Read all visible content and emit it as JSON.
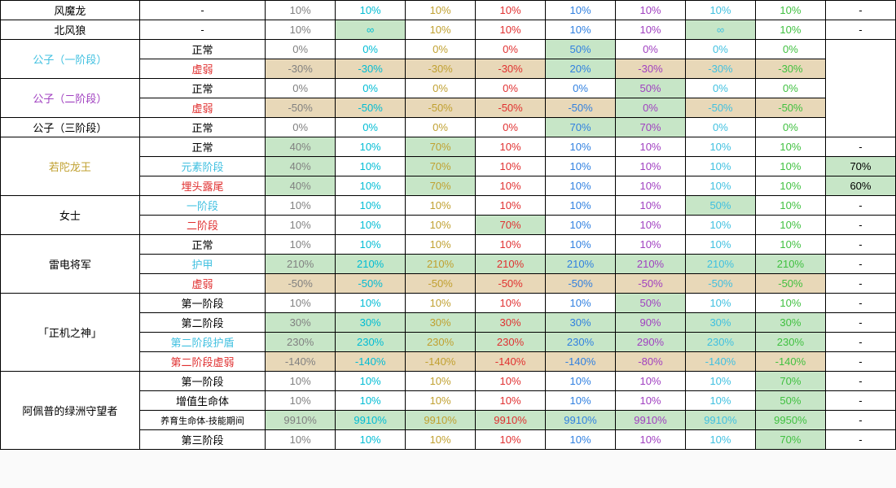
{
  "colors": {
    "text_default": "#000000",
    "text_gray": "#808080",
    "text_cyan": "#00bcd4",
    "text_olive": "#c0a030",
    "text_red": "#e03030",
    "text_blue": "#3080e0",
    "text_purple": "#a040c0",
    "text_lightblue": "#40c0e0",
    "text_green": "#40c040",
    "hl_green": "#c7e6c7",
    "hl_tan": "#e8d8b8"
  },
  "valueColColors": [
    "#808080",
    "#00bcd4",
    "#c0a030",
    "#e03030",
    "#3080e0",
    "#a040c0",
    "#40c0e0",
    "#40c040"
  ],
  "rows": [
    {
      "name": "风魔龙",
      "nameColor": "#000000",
      "nameRowspan": 1,
      "state": "-",
      "stateColor": "#000000",
      "vals": [
        "10%",
        "10%",
        "10%",
        "10%",
        "10%",
        "10%",
        "10%",
        "10%"
      ],
      "hl": [
        false,
        false,
        false,
        false,
        false,
        false,
        false,
        false
      ],
      "hlType": [
        "",
        "",
        "",
        "",
        "",
        "",
        "",
        ""
      ],
      "last": "-",
      "lastHl": false,
      "lastRowspan": 1
    },
    {
      "name": "北风狼",
      "nameColor": "#000000",
      "nameRowspan": 1,
      "state": "-",
      "stateColor": "#000000",
      "vals": [
        "10%",
        "∞",
        "10%",
        "10%",
        "10%",
        "10%",
        "∞",
        "10%"
      ],
      "hl": [
        false,
        true,
        false,
        false,
        false,
        false,
        true,
        false
      ],
      "hlType": [
        "",
        "g",
        "",
        "",
        "",
        "",
        "g",
        ""
      ],
      "last": "-",
      "lastHl": false,
      "lastRowspan": 1
    },
    {
      "name": "公子（一阶段）",
      "nameColor": "#40c0e0",
      "nameRowspan": 2,
      "state": "正常",
      "stateColor": "#000000",
      "vals": [
        "0%",
        "0%",
        "0%",
        "0%",
        "50%",
        "0%",
        "0%",
        "0%"
      ],
      "hl": [
        false,
        false,
        false,
        false,
        true,
        false,
        false,
        false
      ],
      "hlType": [
        "",
        "",
        "",
        "",
        "g",
        "",
        "",
        ""
      ],
      "last": "",
      "lastHl": false,
      "lastRowspan": 5
    },
    {
      "state": "虚弱",
      "stateColor": "#e03030",
      "vals": [
        "-30%",
        "-30%",
        "-30%",
        "-30%",
        "20%",
        "-30%",
        "-30%",
        "-30%"
      ],
      "hl": [
        true,
        true,
        true,
        true,
        true,
        true,
        true,
        true
      ],
      "hlType": [
        "t",
        "t",
        "t",
        "t",
        "g",
        "t",
        "t",
        "t"
      ]
    },
    {
      "name": "公子（二阶段）",
      "nameColor": "#a040c0",
      "nameRowspan": 2,
      "state": "正常",
      "stateColor": "#000000",
      "vals": [
        "0%",
        "0%",
        "0%",
        "0%",
        "0%",
        "50%",
        "0%",
        "0%"
      ],
      "hl": [
        false,
        false,
        false,
        false,
        false,
        true,
        false,
        false
      ],
      "hlType": [
        "",
        "",
        "",
        "",
        "",
        "g",
        "",
        ""
      ],
      "last": "-"
    },
    {
      "state": "虚弱",
      "stateColor": "#e03030",
      "vals": [
        "-50%",
        "-50%",
        "-50%",
        "-50%",
        "-50%",
        "0%",
        "-50%",
        "-50%"
      ],
      "hl": [
        true,
        true,
        true,
        true,
        true,
        true,
        true,
        true
      ],
      "hlType": [
        "t",
        "t",
        "t",
        "t",
        "t",
        "g",
        "t",
        "t"
      ]
    },
    {
      "name": "公子（三阶段）",
      "nameColor": "#000000",
      "nameRowspan": 1,
      "state": "正常",
      "stateColor": "#000000",
      "vals": [
        "0%",
        "0%",
        "0%",
        "0%",
        "70%",
        "70%",
        "0%",
        "0%"
      ],
      "hl": [
        false,
        false,
        false,
        false,
        true,
        true,
        false,
        false
      ],
      "hlType": [
        "",
        "",
        "",
        "",
        "g",
        "g",
        "",
        ""
      ]
    },
    {
      "name": "若陀龙王",
      "nameColor": "#c0a030",
      "nameRowspan": 3,
      "state": "正常",
      "stateColor": "#000000",
      "vals": [
        "40%",
        "10%",
        "70%",
        "10%",
        "10%",
        "10%",
        "10%",
        "10%"
      ],
      "hl": [
        true,
        false,
        true,
        false,
        false,
        false,
        false,
        false
      ],
      "hlType": [
        "g",
        "",
        "g",
        "",
        "",
        "",
        "",
        ""
      ],
      "last": "-",
      "lastHl": false,
      "lastRowspan": 1
    },
    {
      "state": "元素阶段",
      "stateColor": "#40c0e0",
      "vals": [
        "40%",
        "10%",
        "70%",
        "10%",
        "10%",
        "10%",
        "10%",
        "10%"
      ],
      "hl": [
        true,
        false,
        true,
        false,
        false,
        false,
        false,
        false
      ],
      "hlType": [
        "g",
        "",
        "g",
        "",
        "",
        "",
        "",
        ""
      ],
      "last": "70%",
      "lastHl": true,
      "lastHlType": "g",
      "lastRowspan": 1
    },
    {
      "state": "埋头露尾",
      "stateColor": "#e03030",
      "vals": [
        "40%",
        "10%",
        "70%",
        "10%",
        "10%",
        "10%",
        "10%",
        "10%"
      ],
      "hl": [
        true,
        false,
        true,
        false,
        false,
        false,
        false,
        false
      ],
      "hlType": [
        "g",
        "",
        "g",
        "",
        "",
        "",
        "",
        ""
      ],
      "last": "60%",
      "lastHl": true,
      "lastHlType": "g",
      "lastRowspan": 1
    },
    {
      "name": "女士",
      "nameColor": "#000000",
      "nameRowspan": 2,
      "state": "一阶段",
      "stateColor": "#40c0e0",
      "vals": [
        "10%",
        "10%",
        "10%",
        "10%",
        "10%",
        "10%",
        "50%",
        "10%"
      ],
      "hl": [
        false,
        false,
        false,
        false,
        false,
        false,
        true,
        false
      ],
      "hlType": [
        "",
        "",
        "",
        "",
        "",
        "",
        "g",
        ""
      ],
      "last": "-",
      "lastHl": false,
      "lastRowspan": 1
    },
    {
      "state": "二阶段",
      "stateColor": "#e03030",
      "vals": [
        "10%",
        "10%",
        "10%",
        "70%",
        "10%",
        "10%",
        "10%",
        "10%"
      ],
      "hl": [
        false,
        false,
        false,
        true,
        false,
        false,
        false,
        false
      ],
      "hlType": [
        "",
        "",
        "",
        "g",
        "",
        "",
        "",
        ""
      ],
      "last": "-",
      "lastHl": false,
      "lastRowspan": 1
    },
    {
      "name": "雷电将军",
      "nameColor": "#000000",
      "nameRowspan": 3,
      "state": "正常",
      "stateColor": "#000000",
      "vals": [
        "10%",
        "10%",
        "10%",
        "10%",
        "10%",
        "10%",
        "10%",
        "10%"
      ],
      "hl": [
        false,
        false,
        false,
        false,
        false,
        false,
        false,
        false
      ],
      "hlType": [
        "",
        "",
        "",
        "",
        "",
        "",
        "",
        ""
      ],
      "last": "-",
      "lastHl": false,
      "lastRowspan": 1
    },
    {
      "state": "护甲",
      "stateColor": "#40c0e0",
      "vals": [
        "210%",
        "210%",
        "210%",
        "210%",
        "210%",
        "210%",
        "210%",
        "210%"
      ],
      "hl": [
        true,
        true,
        true,
        true,
        true,
        true,
        true,
        true
      ],
      "hlType": [
        "g",
        "g",
        "g",
        "g",
        "g",
        "g",
        "g",
        "g"
      ],
      "last": "-",
      "lastHl": false,
      "lastRowspan": 1
    },
    {
      "state": "虚弱",
      "stateColor": "#e03030",
      "vals": [
        "-50%",
        "-50%",
        "-50%",
        "-50%",
        "-50%",
        "-50%",
        "-50%",
        "-50%"
      ],
      "hl": [
        true,
        true,
        true,
        true,
        true,
        true,
        true,
        true
      ],
      "hlType": [
        "t",
        "t",
        "t",
        "t",
        "t",
        "t",
        "t",
        "t"
      ],
      "last": "-",
      "lastHl": false,
      "lastRowspan": 1
    },
    {
      "name": "「正机之神」",
      "nameColor": "#000000",
      "nameRowspan": 4,
      "state": "第一阶段",
      "stateColor": "#000000",
      "vals": [
        "10%",
        "10%",
        "10%",
        "10%",
        "10%",
        "50%",
        "10%",
        "10%"
      ],
      "hl": [
        false,
        false,
        false,
        false,
        false,
        true,
        false,
        false
      ],
      "hlType": [
        "",
        "",
        "",
        "",
        "",
        "g",
        "",
        ""
      ],
      "last": "-",
      "lastHl": false,
      "lastRowspan": 1
    },
    {
      "state": "第二阶段",
      "stateColor": "#000000",
      "vals": [
        "30%",
        "30%",
        "30%",
        "30%",
        "30%",
        "90%",
        "30%",
        "30%"
      ],
      "hl": [
        true,
        true,
        true,
        true,
        true,
        true,
        true,
        true
      ],
      "hlType": [
        "g",
        "g",
        "g",
        "g",
        "g",
        "g",
        "g",
        "g"
      ],
      "last": "-",
      "lastHl": false,
      "lastRowspan": 1
    },
    {
      "state": "第二阶段护盾",
      "stateColor": "#40c0e0",
      "vals": [
        "230%",
        "230%",
        "230%",
        "230%",
        "230%",
        "290%",
        "230%",
        "230%"
      ],
      "hl": [
        true,
        true,
        true,
        true,
        true,
        true,
        true,
        true
      ],
      "hlType": [
        "g",
        "g",
        "g",
        "g",
        "g",
        "g",
        "g",
        "g"
      ],
      "last": "-",
      "lastHl": false,
      "lastRowspan": 1
    },
    {
      "state": "第二阶段虚弱",
      "stateColor": "#e03030",
      "vals": [
        "-140%",
        "-140%",
        "-140%",
        "-140%",
        "-140%",
        "-80%",
        "-140%",
        "-140%"
      ],
      "hl": [
        true,
        true,
        true,
        true,
        true,
        true,
        true,
        true
      ],
      "hlType": [
        "t",
        "t",
        "t",
        "t",
        "t",
        "t",
        "t",
        "t"
      ],
      "last": "-",
      "lastHl": false,
      "lastRowspan": 1
    },
    {
      "name": "阿佩普的绿洲守望者",
      "nameColor": "#000000",
      "nameRowspan": 4,
      "state": "第一阶段",
      "stateColor": "#000000",
      "vals": [
        "10%",
        "10%",
        "10%",
        "10%",
        "10%",
        "10%",
        "10%",
        "70%"
      ],
      "hl": [
        false,
        false,
        false,
        false,
        false,
        false,
        false,
        true
      ],
      "hlType": [
        "",
        "",
        "",
        "",
        "",
        "",
        "",
        "g"
      ],
      "last": "-",
      "lastHl": false,
      "lastRowspan": 1
    },
    {
      "state": "增值生命体",
      "stateColor": "#000000",
      "vals": [
        "10%",
        "10%",
        "10%",
        "10%",
        "10%",
        "10%",
        "10%",
        "50%"
      ],
      "hl": [
        false,
        false,
        false,
        false,
        false,
        false,
        false,
        true
      ],
      "hlType": [
        "",
        "",
        "",
        "",
        "",
        "",
        "",
        "g"
      ],
      "last": "-",
      "lastHl": false,
      "lastRowspan": 1
    },
    {
      "state": "养育生命体-技能期间",
      "stateColor": "#000000",
      "stateSmall": true,
      "vals": [
        "9910%",
        "9910%",
        "9910%",
        "9910%",
        "9910%",
        "9910%",
        "9910%",
        "9950%"
      ],
      "hl": [
        true,
        true,
        true,
        true,
        true,
        true,
        true,
        true
      ],
      "hlType": [
        "g",
        "g",
        "g",
        "g",
        "g",
        "g",
        "g",
        "g"
      ],
      "last": "-",
      "lastHl": false,
      "lastRowspan": 1
    },
    {
      "state": "第三阶段",
      "stateColor": "#000000",
      "vals": [
        "10%",
        "10%",
        "10%",
        "10%",
        "10%",
        "10%",
        "10%",
        "70%"
      ],
      "hl": [
        false,
        false,
        false,
        false,
        false,
        false,
        false,
        true
      ],
      "hlType": [
        "",
        "",
        "",
        "",
        "",
        "",
        "",
        "g"
      ],
      "last": "-",
      "lastHl": false,
      "lastRowspan": 1
    }
  ]
}
